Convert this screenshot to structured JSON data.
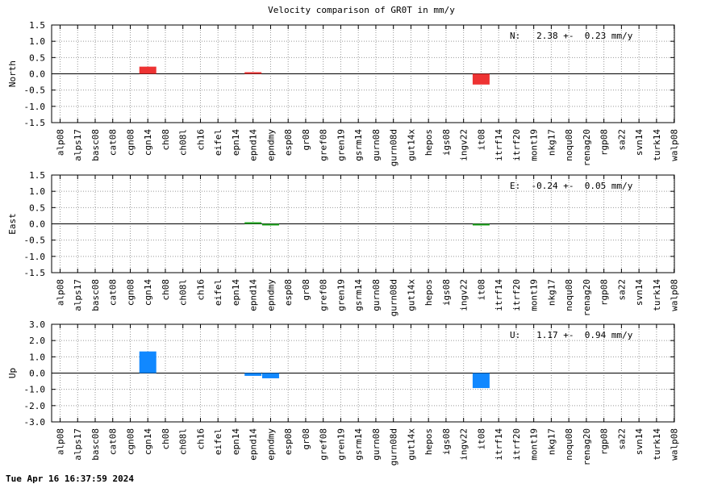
{
  "title": "Velocity comparison of GR0T in mm/y",
  "timestamp": "Tue Apr 16 16:37:59 2024",
  "colors": {
    "north": "#ee3333",
    "east": "#22aa22",
    "up": "#1188ff",
    "grid": "#999999"
  },
  "chart_data": [
    {
      "type": "bar",
      "ylabel": "North",
      "annotation": "N:   2.38 +-  0.23 mm/y",
      "ylim": [
        -1.5,
        1.5
      ],
      "yticks": [
        "-1.5",
        "-1.0",
        "-0.5",
        "0.0",
        "0.5",
        "1.0",
        "1.5"
      ],
      "grid": true,
      "categories": [
        "alp08",
        "alps17",
        "basc08",
        "cat08",
        "cgn08",
        "cgn14",
        "ch08",
        "ch08l",
        "ch16",
        "eifel",
        "epn14",
        "epnd14",
        "epndmy",
        "esp08",
        "gr08",
        "gref08",
        "gren19",
        "gsrm14",
        "gurn08",
        "gurn08d",
        "gut14x",
        "hepos",
        "igs08",
        "ingv22",
        "it08",
        "itrf14",
        "itrf20",
        "mont19",
        "nkg17",
        "noqu08",
        "renag20",
        "rgp08",
        "sa22",
        "svn14",
        "turk14",
        "walp08"
      ],
      "values": [
        0,
        0,
        0,
        0,
        0,
        0.22,
        0,
        0,
        0,
        0,
        0,
        0.04,
        0,
        0,
        0,
        0,
        0,
        0,
        0,
        0,
        0,
        0,
        0,
        0,
        -0.33,
        0,
        0,
        0,
        0,
        0,
        0,
        0,
        0,
        0,
        0,
        0
      ]
    },
    {
      "type": "bar",
      "ylabel": "East",
      "annotation": "E:  -0.24 +-  0.05 mm/y",
      "ylim": [
        -1.5,
        1.5
      ],
      "yticks": [
        "-1.5",
        "-1.0",
        "-0.5",
        "0.0",
        "0.5",
        "1.0",
        "1.5"
      ],
      "grid": true,
      "categories": [
        "alp08",
        "alps17",
        "basc08",
        "cat08",
        "cgn08",
        "cgn14",
        "ch08",
        "ch08l",
        "ch16",
        "eifel",
        "epn14",
        "epnd14",
        "epndmy",
        "esp08",
        "gr08",
        "gref08",
        "gren19",
        "gsrm14",
        "gurn08",
        "gurn08d",
        "gut14x",
        "hepos",
        "igs08",
        "ingv22",
        "it08",
        "itrf14",
        "itrf20",
        "mont19",
        "nkg17",
        "noqu08",
        "renag20",
        "rgp08",
        "sa22",
        "svn14",
        "turk14",
        "walp08"
      ],
      "values": [
        0,
        0,
        0,
        0,
        0,
        0,
        0,
        0,
        0,
        0,
        0,
        0.04,
        -0.04,
        0,
        0,
        0,
        0,
        0,
        0,
        0,
        0,
        0,
        0,
        0,
        -0.04,
        0,
        0,
        0,
        0,
        0,
        0,
        0,
        0,
        0,
        0,
        0
      ]
    },
    {
      "type": "bar",
      "ylabel": "Up",
      "annotation": "U:   1.17 +-  0.94 mm/y",
      "ylim": [
        -3.0,
        3.0
      ],
      "yticks": [
        "-3.0",
        "-2.0",
        "-1.0",
        "0.0",
        "1.0",
        "2.0",
        "3.0"
      ],
      "grid": true,
      "categories": [
        "alp08",
        "alps17",
        "basc08",
        "cat08",
        "cgn08",
        "cgn14",
        "ch08",
        "ch08l",
        "ch16",
        "eifel",
        "epn14",
        "epnd14",
        "epndmy",
        "esp08",
        "gr08",
        "gref08",
        "gren19",
        "gsrm14",
        "gurn08",
        "gurn08d",
        "gut14x",
        "hepos",
        "igs08",
        "ingv22",
        "it08",
        "itrf14",
        "itrf20",
        "mont19",
        "nkg17",
        "noqu08",
        "renag20",
        "rgp08",
        "sa22",
        "svn14",
        "turk14",
        "walp08"
      ],
      "values": [
        0,
        0,
        0,
        0,
        0,
        1.33,
        0,
        0,
        0,
        0,
        0,
        -0.17,
        -0.32,
        0,
        0,
        0,
        0,
        0,
        0,
        0,
        0,
        0,
        0,
        0,
        -0.92,
        0,
        0,
        0,
        0,
        0,
        0,
        0,
        0,
        0,
        0,
        0
      ]
    }
  ]
}
